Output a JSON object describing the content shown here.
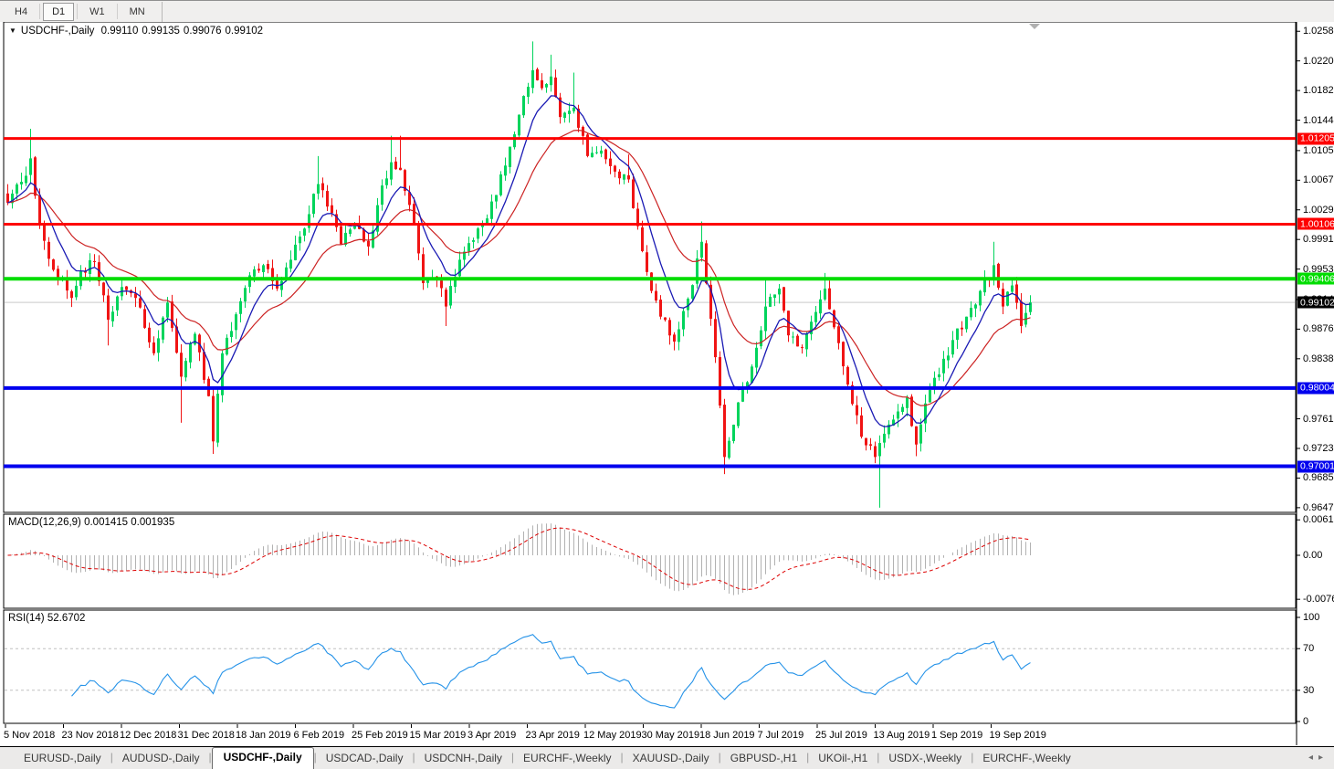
{
  "toolbar": {
    "timeframes": [
      {
        "label": "H4",
        "active": false
      },
      {
        "label": "D1",
        "active": true
      },
      {
        "label": "W1",
        "active": false
      },
      {
        "label": "MN",
        "active": false
      }
    ]
  },
  "chart": {
    "title": "USDCHF-,Daily",
    "ohlc": {
      "open": "0.99110",
      "high": "0.99135",
      "low": "0.99076",
      "close": "0.99102"
    }
  },
  "indicators": {
    "macd": {
      "label": "MACD(12,26,9)",
      "values": "0.001415 0.001935",
      "axis_ticks": [
        {
          "v": 0.00613,
          "label": "0.00613"
        },
        {
          "v": 0,
          "label": "0.00"
        },
        {
          "v": -0.00761,
          "label": "-0.00761"
        }
      ]
    },
    "rsi": {
      "label": "RSI(14)",
      "value": "52.6702",
      "axis_ticks": [
        {
          "v": 100,
          "label": "100"
        },
        {
          "v": 70,
          "label": "70"
        },
        {
          "v": 30,
          "label": "30"
        },
        {
          "v": 0,
          "label": "0"
        }
      ],
      "levels": [
        70,
        30
      ]
    }
  },
  "chart_data": {
    "type": "candlestick",
    "symbol": "USDCHF-",
    "timeframe": "Daily",
    "title": "USDCHF-,Daily",
    "y_axis": {
      "min": 0.9641,
      "max": 1.027,
      "ticks": [
        "1.02580",
        "1.02200",
        "1.01820",
        "1.01440",
        "1.01050",
        "1.00670",
        "1.00290",
        "0.99910",
        "0.99530",
        "0.99140",
        "0.98760",
        "0.98380",
        "0.97610",
        "0.97230",
        "0.96850",
        "0.96470"
      ]
    },
    "x_labels": [
      "5 Nov 2018",
      "23 Nov 2018",
      "12 Dec 2018",
      "31 Dec 2018",
      "18 Jan 2019",
      "6 Feb 2019",
      "25 Feb 2019",
      "15 Mar 2019",
      "3 Apr 2019",
      "23 Apr 2019",
      "12 May 2019",
      "30 May 2019",
      "18 Jun 2019",
      "7 Jul 2019",
      "25 Jul 2019",
      "13 Aug 2019",
      "1 Sep 2019",
      "19 Sep 2019"
    ],
    "horizontal_lines": [
      {
        "price": 1.01205,
        "label": "1.01205",
        "color": "#fe0000",
        "width": 3
      },
      {
        "price": 1.00106,
        "label": "1.00106",
        "color": "#fe0000",
        "width": 3
      },
      {
        "price": 0.99406,
        "label": "0.99406",
        "color": "#00dd00",
        "width": 4
      },
      {
        "price": 0.98004,
        "label": "0.98004",
        "color": "#0000ee",
        "width": 4
      },
      {
        "price": 0.97001,
        "label": "0.97001",
        "color": "#0000ee",
        "width": 4
      }
    ],
    "current_price": {
      "value": 0.99102,
      "label": "0.99102",
      "badge_color": "#000000",
      "line_color": "#c9c9c9"
    },
    "candle_count": 225,
    "close_path": [
      [
        0,
        1.0038
      ],
      [
        3,
        1.0065
      ],
      [
        5,
        1.0095
      ],
      [
        7,
        1.001
      ],
      [
        10,
        0.9952
      ],
      [
        14,
        0.9916
      ],
      [
        16,
        0.995
      ],
      [
        19,
        0.9962
      ],
      [
        22,
        0.9888
      ],
      [
        25,
        0.993
      ],
      [
        28,
        0.9916
      ],
      [
        32,
        0.9845
      ],
      [
        35,
        0.991
      ],
      [
        38,
        0.9815
      ],
      [
        41,
        0.987
      ],
      [
        44,
        0.979
      ],
      [
        45,
        0.9732
      ],
      [
        47,
        0.9845
      ],
      [
        50,
        0.9895
      ],
      [
        53,
        0.9945
      ],
      [
        56,
        0.9958
      ],
      [
        59,
        0.9928
      ],
      [
        62,
        0.9965
      ],
      [
        65,
        1.0005
      ],
      [
        68,
        1.0062
      ],
      [
        71,
        1.0025
      ],
      [
        73,
        0.9985
      ],
      [
        76,
        1.0012
      ],
      [
        79,
        0.9982
      ],
      [
        81,
        1.0035
      ],
      [
        84,
        1.009
      ],
      [
        86,
        1.008
      ],
      [
        89,
        1.001
      ],
      [
        91,
        0.9935
      ],
      [
        94,
        0.994
      ],
      [
        96,
        0.9905
      ],
      [
        99,
        0.9965
      ],
      [
        102,
        0.999
      ],
      [
        105,
        1.0018
      ],
      [
        107,
        1.0048
      ],
      [
        110,
        1.011
      ],
      [
        113,
        1.0175
      ],
      [
        115,
        1.0208
      ],
      [
        117,
        1.0185
      ],
      [
        119,
        1.02
      ],
      [
        121,
        1.0148
      ],
      [
        124,
        1.016
      ],
      [
        127,
        1.0098
      ],
      [
        130,
        1.0105
      ],
      [
        133,
        1.0078
      ],
      [
        136,
        1.0068
      ],
      [
        138,
        1.0008
      ],
      [
        141,
        0.9925
      ],
      [
        143,
        0.9892
      ],
      [
        146,
        0.986
      ],
      [
        149,
        0.9915
      ],
      [
        152,
        0.9988
      ],
      [
        155,
        0.984
      ],
      [
        157,
        0.9712
      ],
      [
        160,
        0.9782
      ],
      [
        163,
        0.9828
      ],
      [
        166,
        0.9905
      ],
      [
        169,
        0.9928
      ],
      [
        171,
        0.9868
      ],
      [
        174,
        0.9852
      ],
      [
        177,
        0.9898
      ],
      [
        179,
        0.9928
      ],
      [
        182,
        0.9858
      ],
      [
        185,
        0.978
      ],
      [
        187,
        0.9738
      ],
      [
        190,
        0.9712
      ],
      [
        191,
        0.973
      ],
      [
        194,
        0.976
      ],
      [
        197,
        0.9788
      ],
      [
        199,
        0.9728
      ],
      [
        202,
        0.9798
      ],
      [
        205,
        0.9838
      ],
      [
        207,
        0.9862
      ],
      [
        210,
        0.9892
      ],
      [
        213,
        0.9925
      ],
      [
        216,
        0.9958
      ],
      [
        218,
        0.9905
      ],
      [
        220,
        0.9932
      ],
      [
        222,
        0.988
      ],
      [
        224,
        0.99102
      ]
    ],
    "wick_overrides": [
      {
        "i": 5,
        "high": 1.0133
      },
      {
        "i": 22,
        "low": 0.9855
      },
      {
        "i": 38,
        "low": 0.9756
      },
      {
        "i": 45,
        "low": 0.9716
      },
      {
        "i": 68,
        "high": 1.0098
      },
      {
        "i": 84,
        "high": 1.0124
      },
      {
        "i": 86,
        "high": 1.0124
      },
      {
        "i": 96,
        "low": 0.988
      },
      {
        "i": 115,
        "high": 1.0245
      },
      {
        "i": 119,
        "high": 1.0228
      },
      {
        "i": 124,
        "high": 1.0205
      },
      {
        "i": 136,
        "high": 1.01
      },
      {
        "i": 152,
        "high": 1.0014
      },
      {
        "i": 157,
        "low": 0.969
      },
      {
        "i": 166,
        "high": 0.9942
      },
      {
        "i": 179,
        "high": 0.9948
      },
      {
        "i": 191,
        "low": 0.9647
      },
      {
        "i": 199,
        "low": 0.9713
      },
      {
        "i": 216,
        "high": 0.9988
      }
    ],
    "moving_averages": [
      {
        "name": "fast-ema",
        "period": 8,
        "color": "#1a1ab4"
      },
      {
        "name": "slow-ema",
        "period": 21,
        "color": "#cc2222"
      }
    ],
    "colors": {
      "up": "#00d45c",
      "down": "#f01414",
      "macd_hist": "#b2b2b2",
      "macd_signal": "#dd0000",
      "rsi": "#2492e8",
      "rsi_levels": "#c0c0c0",
      "shift_marker": "#b0b0b0"
    }
  },
  "tabs": {
    "items": [
      {
        "label": "EURUSD-,Daily",
        "active": false
      },
      {
        "label": "AUDUSD-,Daily",
        "active": false
      },
      {
        "label": "USDCHF-,Daily",
        "active": true
      },
      {
        "label": "USDCAD-,Daily",
        "active": false
      },
      {
        "label": "USDCNH-,Daily",
        "active": false
      },
      {
        "label": "EURCHF-,Weekly",
        "active": false
      },
      {
        "label": "XAUUSD-,Daily",
        "active": false
      },
      {
        "label": "GBPUSD-,H1",
        "active": false
      },
      {
        "label": "UKOil-,H1",
        "active": false
      },
      {
        "label": "USDX-,Weekly",
        "active": false
      },
      {
        "label": "EURCHF-,Weekly",
        "active": false
      }
    ],
    "scroll_left": "◂",
    "scroll_right": "▸"
  }
}
